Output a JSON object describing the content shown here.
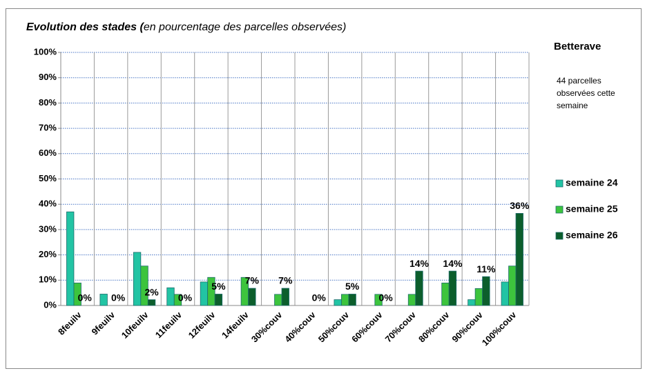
{
  "chart_data": {
    "type": "bar",
    "title": "Evolution des stades (",
    "subtitle": "en pourcentage des parcelles observées)",
    "annotations": [
      "Betterave",
      [
        "44 parcelles",
        "observées cette",
        "semaine"
      ]
    ],
    "categories": [
      "8feuilv",
      "9feuilv",
      "10feuilv",
      "11feuilv",
      "12feuilv",
      "14feuilv",
      "30%couv",
      "40%couv",
      "50%couv",
      "60%couv",
      "70%couv",
      "80%couv",
      "90%couv",
      "100%couv"
    ],
    "series": [
      {
        "name": "semaine 24",
        "color": "#22c4a4",
        "values": [
          37,
          4.5,
          21,
          7,
          9.3,
          0,
          0,
          0,
          2.3,
          0,
          0,
          0,
          2.3,
          9.3
        ]
      },
      {
        "name": "semaine 25",
        "color": "#3dc43d",
        "values": [
          8.9,
          0,
          15.6,
          4.4,
          11.1,
          11.1,
          4.4,
          0,
          4.4,
          4.4,
          4.4,
          8.9,
          6.7,
          15.6
        ]
      },
      {
        "name": "semaine 26",
        "color": "#0c5e2c",
        "values": [
          0,
          0,
          2.3,
          0,
          4.5,
          6.8,
          6.8,
          0,
          4.5,
          0,
          13.6,
          13.6,
          11.4,
          36.4
        ],
        "value_labels": [
          "0%",
          "0%",
          "2%",
          "0%",
          "5%",
          "7%",
          "7%",
          "0%",
          "5%",
          "0%",
          "14%",
          "14%",
          "11%",
          "36%"
        ]
      }
    ],
    "ylim": [
      0,
      100
    ],
    "yticks": [
      {
        "value": 0,
        "label": "0%"
      },
      {
        "value": 10,
        "label": "10%"
      },
      {
        "value": 20,
        "label": "20%"
      },
      {
        "value": 30,
        "label": "30%"
      },
      {
        "value": 40,
        "label": "40%"
      },
      {
        "value": 50,
        "label": "50%"
      },
      {
        "value": 60,
        "label": "60%"
      },
      {
        "value": 70,
        "label": "70%"
      },
      {
        "value": 80,
        "label": "80%"
      },
      {
        "value": 90,
        "label": "90%"
      },
      {
        "value": 100,
        "label": "100%"
      }
    ],
    "grid": true,
    "legend": "right"
  }
}
